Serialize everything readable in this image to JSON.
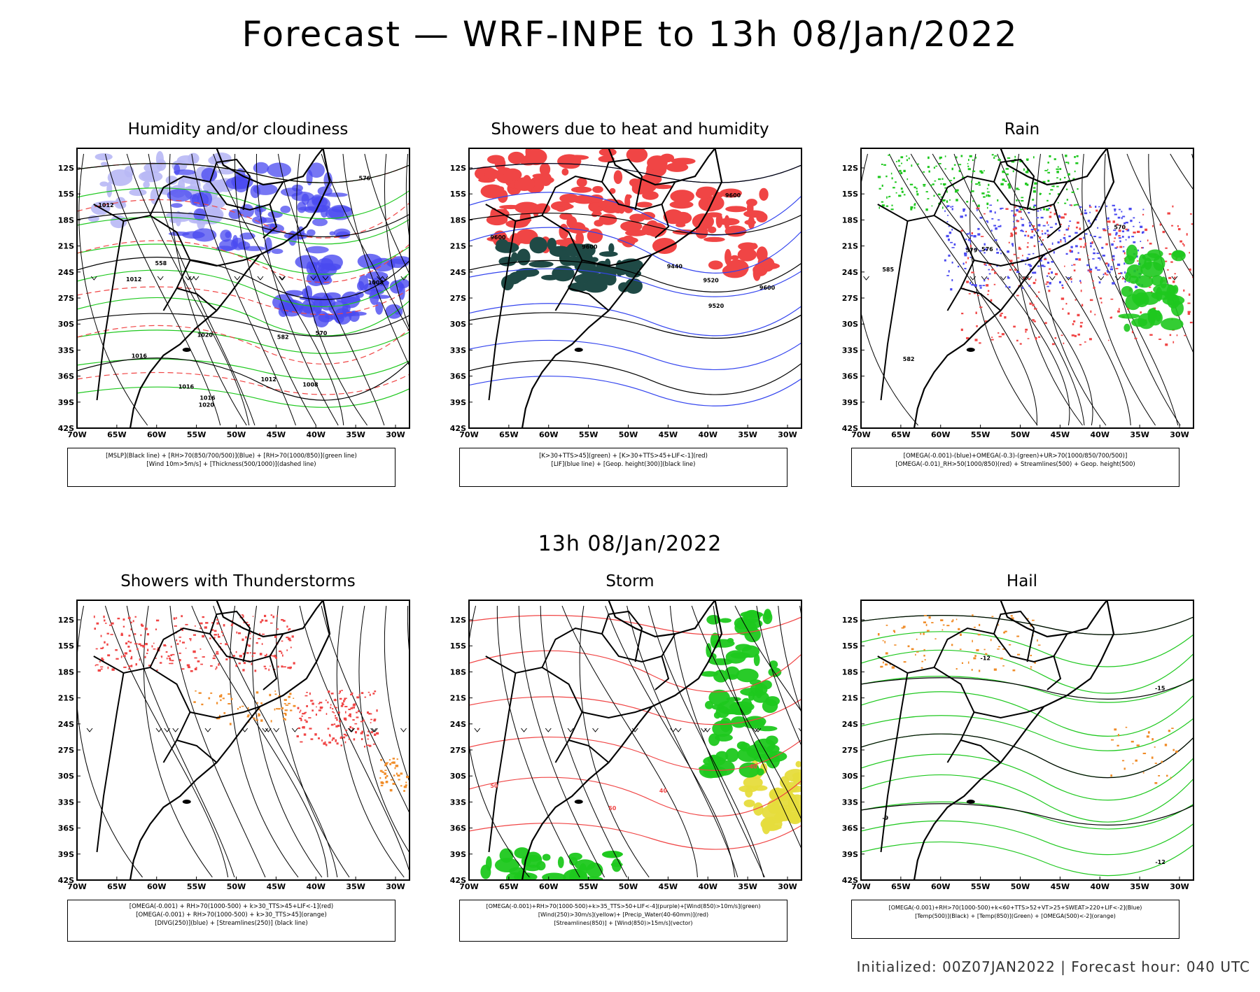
{
  "title": "Forecast — WRF-INPE to 13h 08/Jan/2022",
  "mid_title": "13h 08/Jan/2022",
  "footer": "Initialized: 00Z07JAN2022 | Forecast hour: 040 UTC",
  "lat_ticks": [
    "12S",
    "15S",
    "18S",
    "21S",
    "24S",
    "27S",
    "30S",
    "33S",
    "36S",
    "39S",
    "42S"
  ],
  "lon_ticks": [
    "70W",
    "65W",
    "60W",
    "55W",
    "50W",
    "45W",
    "40W",
    "35W",
    "30W"
  ],
  "colors": {
    "blue": "#4a4af0",
    "light_blue": "#b8b8f5",
    "green": "#1ec81e",
    "red": "#f04545",
    "dark_teal": "#1f4a46",
    "orange": "#f08c28",
    "yellow": "#e6dc3c",
    "black": "#000000"
  },
  "panels": [
    {
      "id": "humidity",
      "title": "Humidity and/or cloudiness",
      "legend": [
        "[MSLP](Black line) + [RH>70(850/700/500)](Blue) + [RH>70(1000/850)](green line)",
        "[Wind 10m>5m/s] + [Thickness(500/1000)](dashed line)"
      ],
      "contour_labels": [
        "1012",
        "1012",
        "1016",
        "1008",
        "1008",
        "1016",
        "1012",
        "1020",
        "1016",
        "1020",
        "570",
        "576",
        "582",
        "558"
      ]
    },
    {
      "id": "showers",
      "title": "Showers due to heat and humidity",
      "legend": [
        "[K>30+TTS>45](green) + [K>30+TTS>45+LIF<-1](red)",
        "[LIF](blue line) + [Geop. height(300)](black line)"
      ],
      "contour_labels": [
        "9600",
        "9600",
        "9600",
        "9520",
        "9440",
        "9520",
        "9600"
      ]
    },
    {
      "id": "rain",
      "title": "Rain",
      "legend": [
        "[OMEGA(-0.001)-(blue)+OMEGA(-0.3)-(green)+UR>70(1000/850/700/500)]",
        "[OMEGA(-0.01)_RH>50(1000/850)(red) + Streamlines(500) + Geop. height(500)"
      ],
      "contour_labels": [
        "585",
        "582",
        "576",
        "570",
        "579"
      ]
    },
    {
      "id": "thunderstorms",
      "title": "Showers with Thunderstorms",
      "legend": [
        "[OMEGA(-0.001) + RH>70(1000-500) + k>30_TTS>45+LIF<-1](red)",
        "[OMEGA(-0.001) + RH>70(1000-500) + k>30_TTS>45](orange)",
        "[DIVG(250)](blue) + [Streamlines(250)] (black line)"
      ],
      "contour_labels": []
    },
    {
      "id": "storm",
      "title": "Storm",
      "legend": [
        "[OMEGA(-0.001)+RH>70(1000-500)+k>35_TTS>50+LIF<-4](purple)+[Wind(850)>10m/s](green)",
        "[Wind(250)>30m/s](yellow)+ [Precip_Water(40-60mm)](red)",
        "[Streamlines(850)] + [Wind(850)>15m/s](vector)"
      ],
      "contour_labels": [
        "50",
        "40",
        "50",
        "40"
      ]
    },
    {
      "id": "hail",
      "title": "Hail",
      "legend": [
        "[OMEGA(-0.001)+RH>70(1000-500)+k<60+TTS>52+VT>25+SWEAT>220+LIF<-2](Blue)",
        "[Temp(500)](Black) + [Temp(850)](Green) + [OMEGA(500)<-2](orange)"
      ],
      "contour_labels": [
        "-9",
        "-12",
        "-12",
        "-15"
      ]
    }
  ]
}
